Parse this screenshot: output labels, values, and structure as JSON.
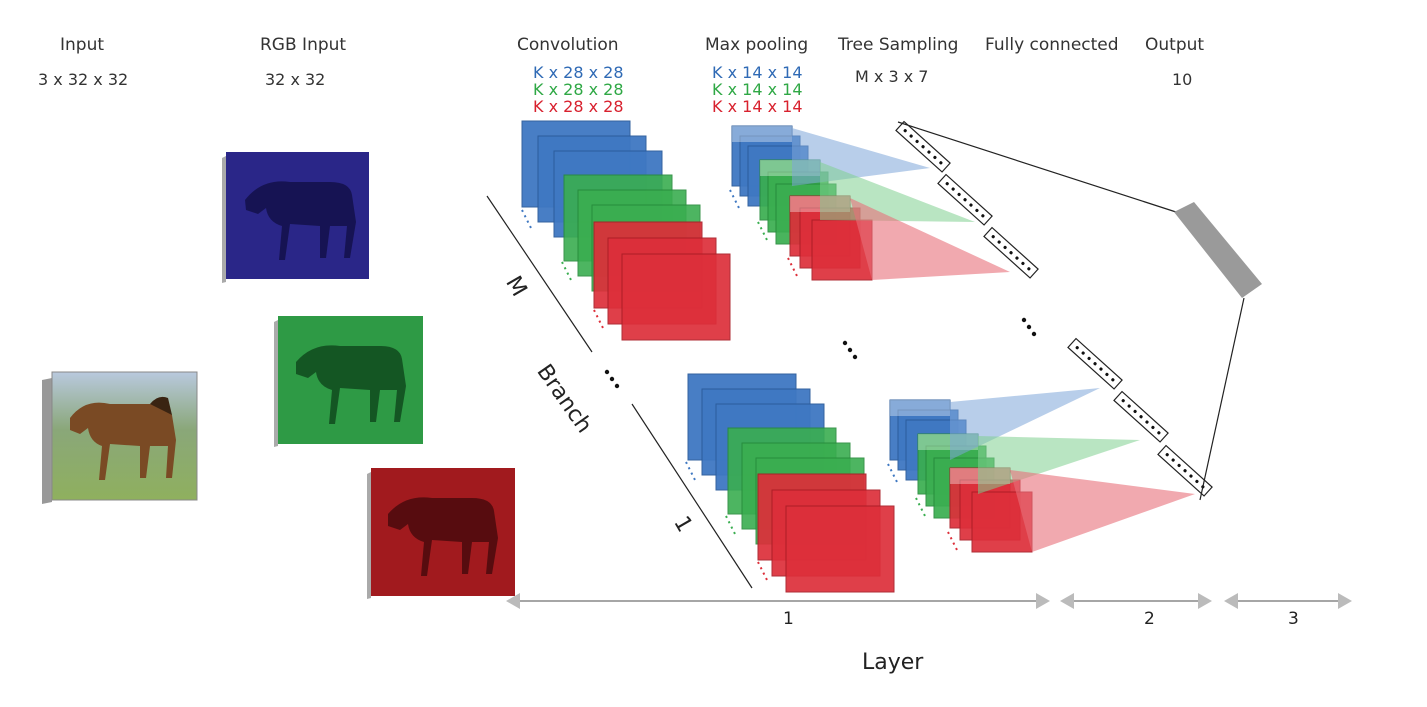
{
  "colors": {
    "blue": "#2f6ab5",
    "green": "#2fa845",
    "red": "#d8212e",
    "gray": "#9a9a9a",
    "purple": "#1e1a7a"
  },
  "headers": {
    "input": "Input",
    "rgb_input": "RGB Input",
    "convolution": "Convolution",
    "max_pooling": "Max pooling",
    "tree_sampling": "Tree Sampling",
    "fully_connected": "Fully connected",
    "output": "Output"
  },
  "subheaders": {
    "input_dims": "3 x 32 x 32",
    "rgb_dims": "32 x 32",
    "tree_dims": "M x 3 x 7",
    "output_dims": "10"
  },
  "conv_dims": [
    "K x 28 x 28",
    "K x 28 x 28",
    "K x 28 x 28"
  ],
  "pool_dims": [
    "K x 14 x 14",
    "K x 14 x 14",
    "K x 14 x 14"
  ],
  "branch": {
    "m_label": "M",
    "branch_label": "Branch",
    "one_label": "1",
    "ellipsis": "..."
  },
  "layer_axis": {
    "title": "Layer",
    "labels": [
      "1",
      "2",
      "3"
    ]
  },
  "icons": {
    "horse_image": "horse-photo-icon",
    "feature_map": "feature-map-icon"
  }
}
